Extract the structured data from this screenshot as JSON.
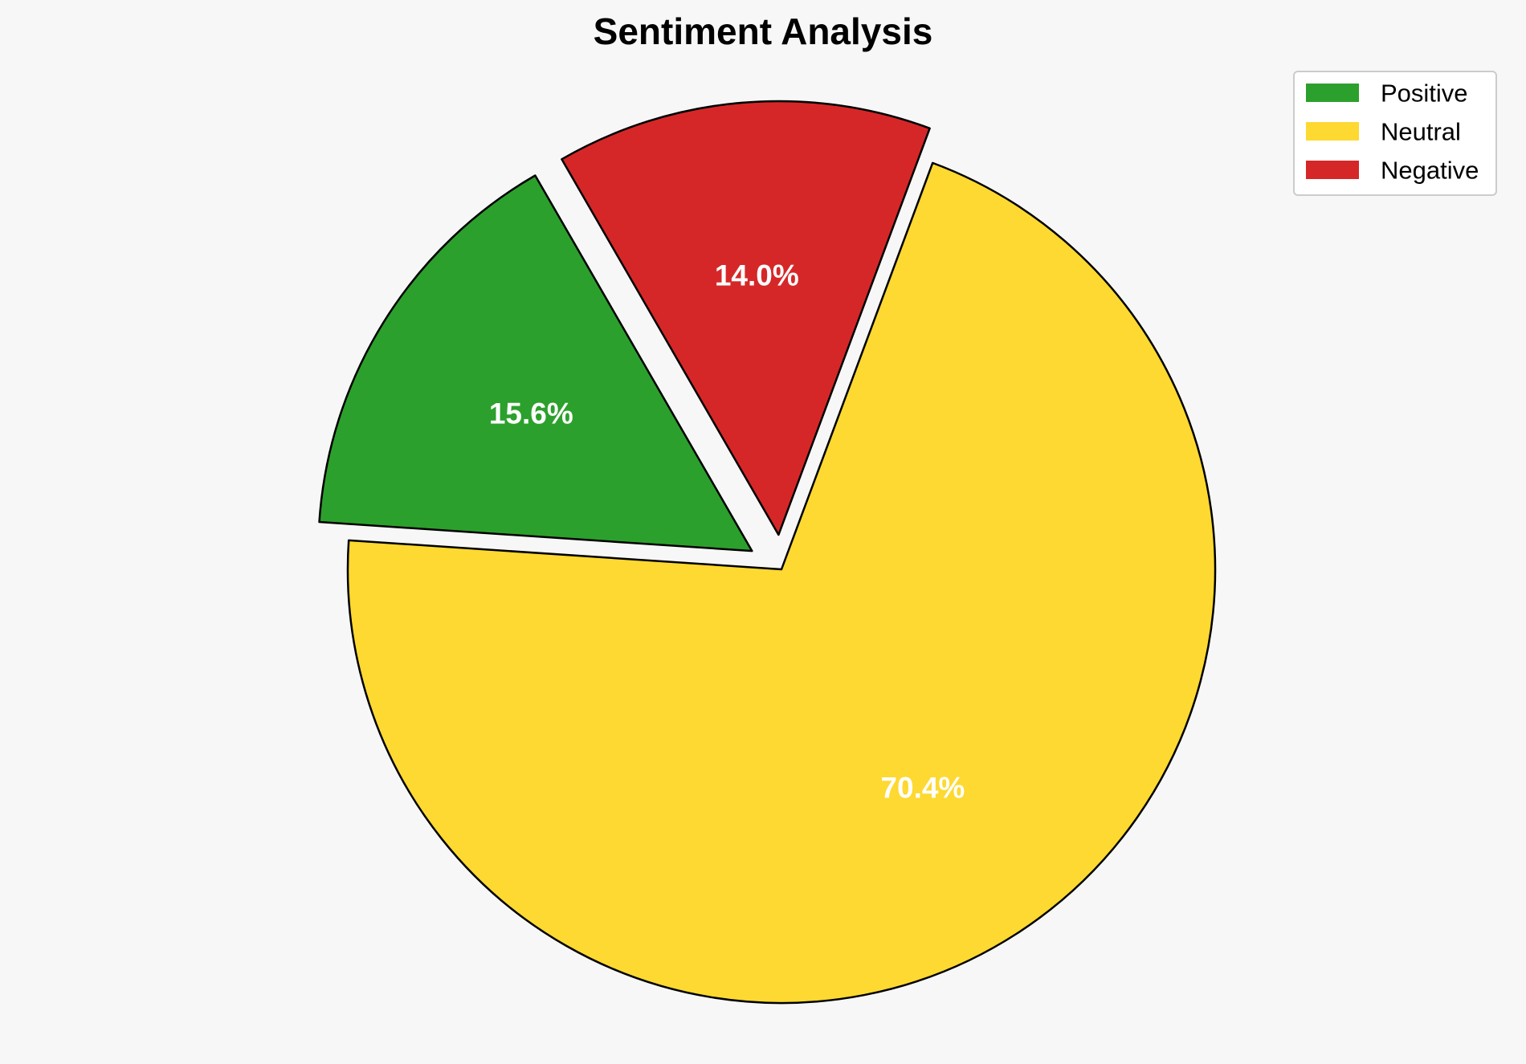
{
  "chart_data": {
    "type": "pie",
    "title": "Sentiment Analysis",
    "slices": [
      {
        "label": "Positive",
        "value": 15.6,
        "display": "15.6%",
        "color": "#2ca02c",
        "exploded": true
      },
      {
        "label": "Neutral",
        "value": 70.4,
        "display": "70.4%",
        "color": "#fdd931",
        "exploded": false
      },
      {
        "label": "Negative",
        "value": 14.0,
        "display": "14.0%",
        "color": "#d62728",
        "exploded": true
      }
    ],
    "legend_position": "top-right",
    "slice_edge_color": "#000000",
    "label_color": "#ffffff"
  },
  "background_color": "#f7f7f7"
}
